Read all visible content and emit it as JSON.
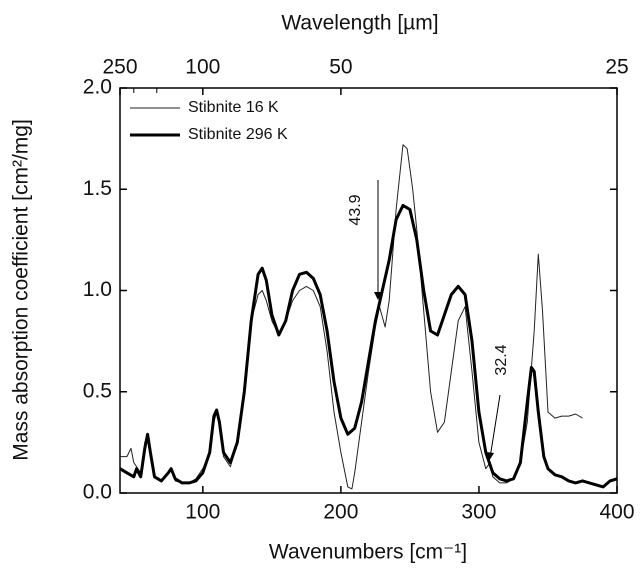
{
  "chart_data": {
    "type": "line",
    "x_label": "Wavenumbers [cm⁻¹]",
    "y_label": "Mass absorption coefficient [cm²/mg]",
    "x2_label": "Wavelength [µm]",
    "xlim": [
      40,
      400
    ],
    "xticks": [
      100,
      200,
      300,
      400
    ],
    "ylim": [
      0,
      2.0
    ],
    "yticks": [
      {
        "value": 0,
        "label": "0.0"
      },
      {
        "value": 0.5,
        "label": "0.5"
      },
      {
        "value": 1.0,
        "label": "1.0"
      },
      {
        "value": 1.5,
        "label": "1.5"
      },
      {
        "value": 2.0,
        "label": "2.0"
      }
    ],
    "x2ticks": [
      250,
      100,
      50,
      25
    ],
    "x2minor": [
      200,
      150
    ],
    "legend": "top-left",
    "annotations": [
      "43.9",
      "32.4"
    ],
    "series": [
      {
        "name": "Stibnite 16 K",
        "color": "#222222",
        "width": 1,
        "x": [
          40,
          45,
          48,
          50,
          55,
          58,
          60,
          62,
          65,
          70,
          75,
          77,
          80,
          85,
          90,
          95,
          100,
          105,
          108,
          110,
          112,
          115,
          120,
          125,
          130,
          135,
          140,
          143,
          146,
          150,
          155,
          160,
          165,
          170,
          175,
          180,
          185,
          190,
          195,
          200,
          205,
          208,
          210,
          215,
          220,
          225,
          228,
          232,
          235,
          240,
          245,
          248,
          252,
          255,
          260,
          265,
          270,
          275,
          280,
          285,
          290,
          295,
          300,
          305,
          308,
          310,
          315,
          320,
          325,
          330,
          335,
          340,
          343,
          346,
          350,
          355,
          360,
          365,
          370,
          375
        ],
        "values": [
          0.18,
          0.18,
          0.22,
          0.15,
          0.1,
          0.25,
          0.28,
          0.18,
          0.08,
          0.06,
          0.1,
          0.12,
          0.06,
          0.05,
          0.05,
          0.07,
          0.12,
          0.2,
          0.35,
          0.4,
          0.35,
          0.18,
          0.13,
          0.25,
          0.5,
          0.85,
          0.98,
          1.0,
          0.95,
          0.85,
          0.78,
          0.85,
          0.95,
          1.0,
          1.02,
          1.0,
          0.92,
          0.7,
          0.4,
          0.2,
          0.03,
          0.02,
          0.1,
          0.35,
          0.6,
          0.82,
          0.92,
          0.82,
          0.95,
          1.4,
          1.72,
          1.7,
          1.5,
          1.3,
          0.9,
          0.5,
          0.3,
          0.35,
          0.6,
          0.85,
          0.92,
          0.6,
          0.25,
          0.12,
          0.15,
          0.08,
          0.05,
          0.05,
          0.07,
          0.15,
          0.35,
          0.8,
          1.18,
          0.9,
          0.4,
          0.37,
          0.38,
          0.38,
          0.39,
          0.37
        ]
      },
      {
        "name": "Stibnite 296 K",
        "color": "#000000",
        "width": 3,
        "x": [
          40,
          45,
          50,
          52,
          55,
          58,
          60,
          62,
          65,
          70,
          75,
          77,
          80,
          85,
          90,
          95,
          100,
          105,
          108,
          110,
          112,
          115,
          120,
          125,
          130,
          135,
          140,
          143,
          146,
          150,
          155,
          160,
          165,
          170,
          175,
          180,
          185,
          190,
          195,
          200,
          205,
          210,
          215,
          220,
          225,
          230,
          235,
          240,
          245,
          250,
          255,
          260,
          265,
          270,
          275,
          280,
          285,
          290,
          295,
          300,
          305,
          310,
          315,
          320,
          325,
          330,
          335,
          338,
          340,
          343,
          347,
          350,
          355,
          360,
          365,
          370,
          375,
          380,
          385,
          390,
          395,
          400
        ],
        "values": [
          0.12,
          0.1,
          0.08,
          0.12,
          0.08,
          0.22,
          0.29,
          0.2,
          0.08,
          0.06,
          0.1,
          0.12,
          0.07,
          0.05,
          0.05,
          0.06,
          0.1,
          0.2,
          0.38,
          0.41,
          0.35,
          0.2,
          0.15,
          0.25,
          0.5,
          0.85,
          1.08,
          1.11,
          1.05,
          0.88,
          0.78,
          0.85,
          1.0,
          1.08,
          1.09,
          1.06,
          0.98,
          0.8,
          0.55,
          0.37,
          0.29,
          0.32,
          0.45,
          0.65,
          0.85,
          1.0,
          1.15,
          1.35,
          1.42,
          1.4,
          1.25,
          1.0,
          0.8,
          0.78,
          0.88,
          0.98,
          1.02,
          0.98,
          0.75,
          0.4,
          0.2,
          0.1,
          0.07,
          0.06,
          0.07,
          0.15,
          0.45,
          0.62,
          0.6,
          0.4,
          0.18,
          0.12,
          0.09,
          0.08,
          0.06,
          0.05,
          0.06,
          0.05,
          0.04,
          0.03,
          0.06,
          0.07
        ]
      }
    ]
  }
}
